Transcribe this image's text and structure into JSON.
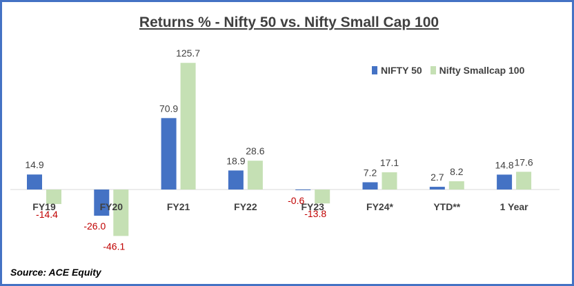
{
  "chart_data": {
    "type": "bar",
    "title": "Returns % - Nifty 50 vs. Nifty Small Cap 100",
    "categories": [
      "FY19",
      "FY20",
      "FY21",
      "FY22",
      "FY23",
      "FY24*",
      "YTD**",
      "1 Year"
    ],
    "series": [
      {
        "name": "NIFTY 50",
        "color": "#4472C4",
        "values": [
          14.9,
          -26.0,
          70.9,
          18.9,
          -0.6,
          7.2,
          2.7,
          14.8
        ]
      },
      {
        "name": "Nifty Smallcap 100",
        "color": "#C5E0B4",
        "values": [
          -14.4,
          -46.1,
          125.7,
          28.6,
          -13.8,
          17.1,
          8.2,
          17.6
        ]
      }
    ],
    "xlabel": "",
    "ylabel": "",
    "ylim": [
      -60,
      130
    ],
    "gridlines": false,
    "legend_position": "top-right",
    "negative_label_color": "#C00000",
    "positive_label_color": "#404040"
  },
  "source": "Source: ACE Equity"
}
